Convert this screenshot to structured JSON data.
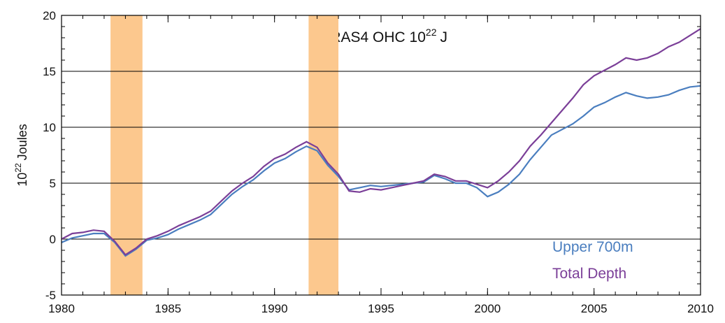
{
  "chart_data": {
    "type": "line",
    "title": {
      "text": "ORAS4  OHC 10",
      "sup": "22",
      "unit": "J"
    },
    "y_label": {
      "text": "10",
      "sup": "22",
      "unit": "Joules"
    },
    "x": [
      1980,
      1980.5,
      1981,
      1981.5,
      1982,
      1982.5,
      1983,
      1983.5,
      1984,
      1984.5,
      1985,
      1985.5,
      1986,
      1986.5,
      1987,
      1987.5,
      1988,
      1988.5,
      1989,
      1989.5,
      1990,
      1990.5,
      1991,
      1991.5,
      1992,
      1992.5,
      1993,
      1993.5,
      1994,
      1994.5,
      1995,
      1995.5,
      1996,
      1996.5,
      1997,
      1997.5,
      1998,
      1998.5,
      1999,
      1999.5,
      2000,
      2000.5,
      2001,
      2001.5,
      2002,
      2002.5,
      2003,
      2003.5,
      2004,
      2004.5,
      2005,
      2005.5,
      2006,
      2006.5,
      2007,
      2007.5,
      2008,
      2008.5,
      2009,
      2009.5,
      2010
    ],
    "series": [
      {
        "name": "Upper 700m",
        "color": "#4a7ebf",
        "values": [
          -0.3,
          0.1,
          0.3,
          0.5,
          0.5,
          -0.3,
          -1.5,
          -0.9,
          -0.1,
          0.1,
          0.4,
          0.9,
          1.3,
          1.7,
          2.2,
          3.1,
          4.0,
          4.7,
          5.3,
          6.1,
          6.8,
          7.2,
          7.8,
          8.3,
          7.9,
          6.6,
          5.6,
          4.4,
          4.6,
          4.8,
          4.7,
          4.8,
          4.9,
          5.0,
          5.1,
          5.7,
          5.4,
          5.0,
          5.0,
          4.6,
          3.8,
          4.2,
          4.9,
          5.8,
          7.1,
          8.2,
          9.3,
          9.8,
          10.3,
          11.0,
          11.8,
          12.2,
          12.7,
          13.1,
          12.8,
          12.6,
          12.7,
          12.9,
          13.3,
          13.6,
          13.7
        ]
      },
      {
        "name": "Total Depth",
        "color": "#7b3f98",
        "values": [
          0.0,
          0.5,
          0.6,
          0.8,
          0.7,
          -0.2,
          -1.4,
          -0.8,
          0.0,
          0.3,
          0.7,
          1.2,
          1.6,
          2.0,
          2.5,
          3.4,
          4.3,
          5.0,
          5.6,
          6.5,
          7.2,
          7.6,
          8.2,
          8.7,
          8.2,
          6.8,
          5.8,
          4.3,
          4.2,
          4.5,
          4.4,
          4.6,
          4.8,
          5.0,
          5.2,
          5.8,
          5.6,
          5.2,
          5.2,
          4.9,
          4.6,
          5.2,
          6.0,
          7.0,
          8.3,
          9.3,
          10.4,
          11.5,
          12.6,
          13.8,
          14.6,
          15.1,
          15.6,
          16.2,
          16.0,
          16.2,
          16.6,
          17.2,
          17.6,
          18.2,
          18.8
        ]
      }
    ],
    "shaded_spans": [
      [
        1982.3,
        1983.8
      ],
      [
        1991.6,
        1993.0
      ]
    ],
    "shade_color": "#fcc88e",
    "xlim": [
      1980,
      2010
    ],
    "xticks": [
      1980,
      1985,
      1990,
      1995,
      2000,
      2005,
      2010
    ],
    "ylim": [
      -5,
      20
    ],
    "yticks": [
      -5,
      0,
      5,
      10,
      15,
      20
    ],
    "grid": true,
    "legend": "lower right"
  }
}
